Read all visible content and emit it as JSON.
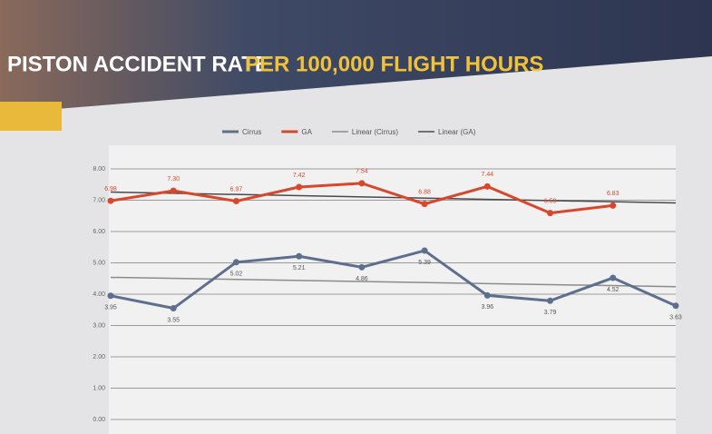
{
  "chart_data": {
    "type": "line",
    "title": "PISTON ACCIDENT RATE",
    "title_highlight": "PER 100,000 FLIGHT HOURS",
    "categories": [
      null,
      null,
      null,
      null,
      null,
      null,
      null,
      null,
      null,
      null
    ],
    "series": [
      {
        "name": "Cirrus",
        "color": "#5d6f8c",
        "values": [
          3.95,
          3.55,
          5.02,
          5.21,
          4.86,
          5.39,
          3.96,
          3.79,
          4.52,
          3.63
        ],
        "value_labels": [
          "3.95",
          "3.55",
          "5.02",
          "5.21",
          "4.86",
          "5.39",
          "3.96",
          "3.79",
          "4.52",
          "3.63"
        ]
      },
      {
        "name": "GA",
        "color": "#d8472b",
        "values": [
          6.98,
          7.3,
          6.97,
          7.42,
          7.54,
          6.88,
          7.44,
          6.59,
          6.83,
          null
        ],
        "value_labels": [
          "6.98",
          "7.30",
          "6.97",
          "7.42",
          "7.54",
          "6.88",
          "7.44",
          "6.59",
          "6.83",
          null
        ]
      }
    ],
    "trendlines": [
      {
        "name": "Linear (Cirrus)",
        "color": "#8c8c8c"
      },
      {
        "name": "Linear (GA)",
        "color": "#4a4a4a"
      }
    ],
    "ylim": [
      0,
      8
    ],
    "yticks": [
      {
        "value": 0,
        "label": "0.00"
      },
      {
        "value": 1,
        "label": "1.00"
      },
      {
        "value": 2,
        "label": "2.00"
      },
      {
        "value": 3,
        "label": "3.00"
      },
      {
        "value": 4,
        "label": "4.00"
      },
      {
        "value": 5,
        "label": "5.00"
      },
      {
        "value": 6,
        "label": "6.00"
      },
      {
        "value": 7,
        "label": "7.00"
      },
      {
        "value": 8,
        "label": "8.00"
      }
    ],
    "grid": true
  }
}
